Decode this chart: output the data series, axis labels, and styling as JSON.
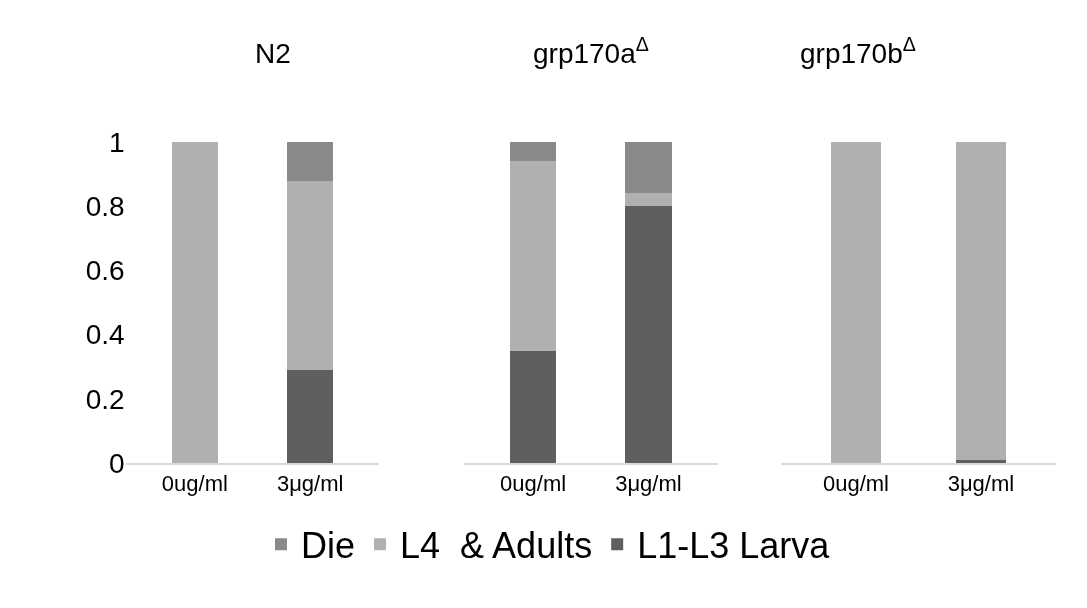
{
  "chart_data": [
    {
      "type": "bar",
      "title": "N2",
      "categories": [
        "0ug/ml",
        "3μg/ml"
      ],
      "stacked": true,
      "ylim": [
        0,
        1
      ],
      "yticks": [
        0,
        0.2,
        0.4,
        0.6,
        0.8,
        1
      ],
      "grid": false,
      "legend": "bottom",
      "series": [
        {
          "name": "L1-L3 Larva",
          "color": "#5f5f5f",
          "values": [
            0,
            0.29
          ]
        },
        {
          "name": "L4  & Adults",
          "color": "#b0b0b0",
          "values": [
            1,
            0.59
          ]
        },
        {
          "name": "Die",
          "color": "#8a8a8a",
          "values": [
            0,
            0.12
          ]
        }
      ]
    },
    {
      "type": "bar",
      "title": "grp170a$^{Δ}$",
      "categories": [
        "0ug/ml",
        "3μg/ml"
      ],
      "stacked": true,
      "ylim": [
        0,
        1
      ],
      "grid": false,
      "tick_labels": "x",
      "series": [
        {
          "color": "#5f5f5f",
          "values": [
            0.35,
            0.8
          ]
        },
        {
          "color": "#b0b0b0",
          "values": [
            0.59,
            0.04
          ]
        },
        {
          "color": "#8a8a8a",
          "values": [
            0.06,
            0.16
          ]
        }
      ]
    },
    {
      "type": "bar",
      "title": "grp170b$^{Δ}$",
      "categories": [
        "0ug/ml",
        "3μg/ml"
      ],
      "stacked": true,
      "ylim": [
        0,
        1
      ],
      "grid": false,
      "tick_labels": "x",
      "series": [
        {
          "color": "#5f5f5f",
          "values": [
            0,
            0.01
          ]
        },
        {
          "color": "#b0b0b0",
          "values": [
            1,
            0.99
          ]
        },
        {
          "color": "#8a8a8a",
          "values": [
            0,
            0
          ]
        }
      ]
    }
  ]
}
